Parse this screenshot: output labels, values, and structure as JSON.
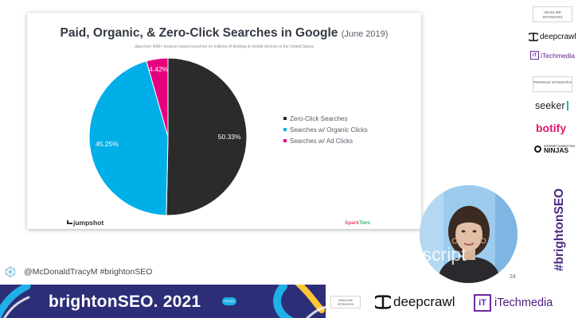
{
  "slide": {
    "title": "Paid, Organic, & Zero-Click Searches in Google",
    "title_date": "(June 2019)",
    "subtitle": "data from 40M+ browser-based searches on millions of desktop & mobile devices in the United States",
    "source_logo": "jumpshot",
    "brand_logo_a": "Spark",
    "brand_logo_b": "Toro"
  },
  "chart_data": {
    "type": "pie",
    "title": "Paid, Organic, & Zero-Click Searches in Google (June 2019)",
    "legend_placement": "right",
    "slices": [
      {
        "label": "Zero-Click Searches",
        "value": 50.33,
        "value_label": "50.33%",
        "color": "#2b2b2b"
      },
      {
        "label": "Searches w/ Organic Clicks",
        "value": 45.25,
        "value_label": "45.25%",
        "color": "#00aee8"
      },
      {
        "label": "Searches w/ Ad Clicks",
        "value": 4.42,
        "value_label": "4.42%",
        "color": "#e6007e"
      }
    ]
  },
  "sponsors": {
    "headline_label": "HEADLINE SPONSORS",
    "premium_label": "PREMIUM SPONSORS",
    "deepcrawl": "deepcrawl",
    "itechmedia": "iTechmedia",
    "itech_mark": "iT",
    "seeker": "seeker",
    "botify": "botify",
    "ninjas": "NINJAS",
    "ninjas_small": "INTERNET MARKETING"
  },
  "hashtag": "#brightonSEO",
  "webcam": {
    "watermark": "descript"
  },
  "page_number": "24",
  "caption": "@McDonaldTracyM #brightonSEO",
  "banner": {
    "wordmark": "brightonSEO.",
    "year": "2021",
    "badge": "ONLINE",
    "headline_label": "HEADLINE SPONSORS",
    "deepcrawl": "deepcrawl",
    "itechmedia": "iTechmedia",
    "itech_mark": "iT"
  },
  "colors": {
    "banner_bg": "#2d2e78",
    "accent_cyan": "#1fb0e8",
    "accent_magenta": "#e6007e",
    "hashtag_purple": "#4b2a86"
  }
}
